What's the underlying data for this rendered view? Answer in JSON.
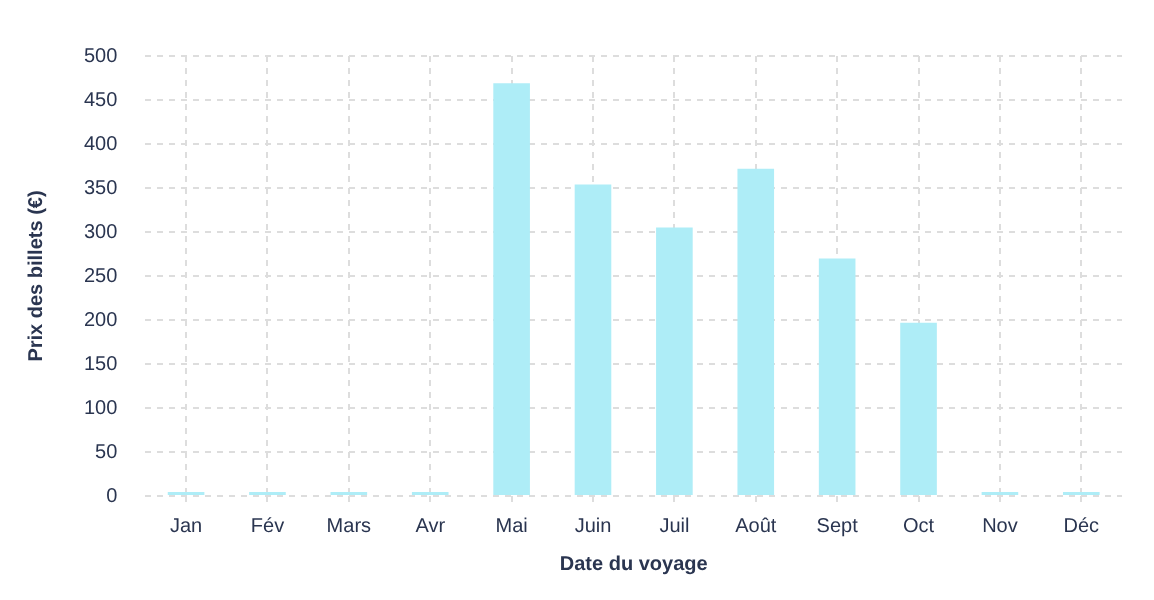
{
  "chart_data": {
    "type": "bar",
    "xlabel": "Date du voyage",
    "ylabel": "Prix des billets (€)",
    "categories": [
      "Jan",
      "Fév",
      "Mars",
      "Avr",
      "Mai",
      "Juin",
      "Juil",
      "Août",
      "Sept",
      "Oct",
      "Nov",
      "Déc"
    ],
    "values": [
      0,
      0,
      0,
      0,
      469,
      354,
      305,
      372,
      270,
      197,
      0,
      0
    ],
    "color": "#aeedf7",
    "ylim": [
      0,
      500
    ],
    "yticks": [
      0,
      50,
      100,
      150,
      200,
      250,
      300,
      350,
      400,
      450,
      500
    ],
    "grid": true,
    "legend": false
  }
}
